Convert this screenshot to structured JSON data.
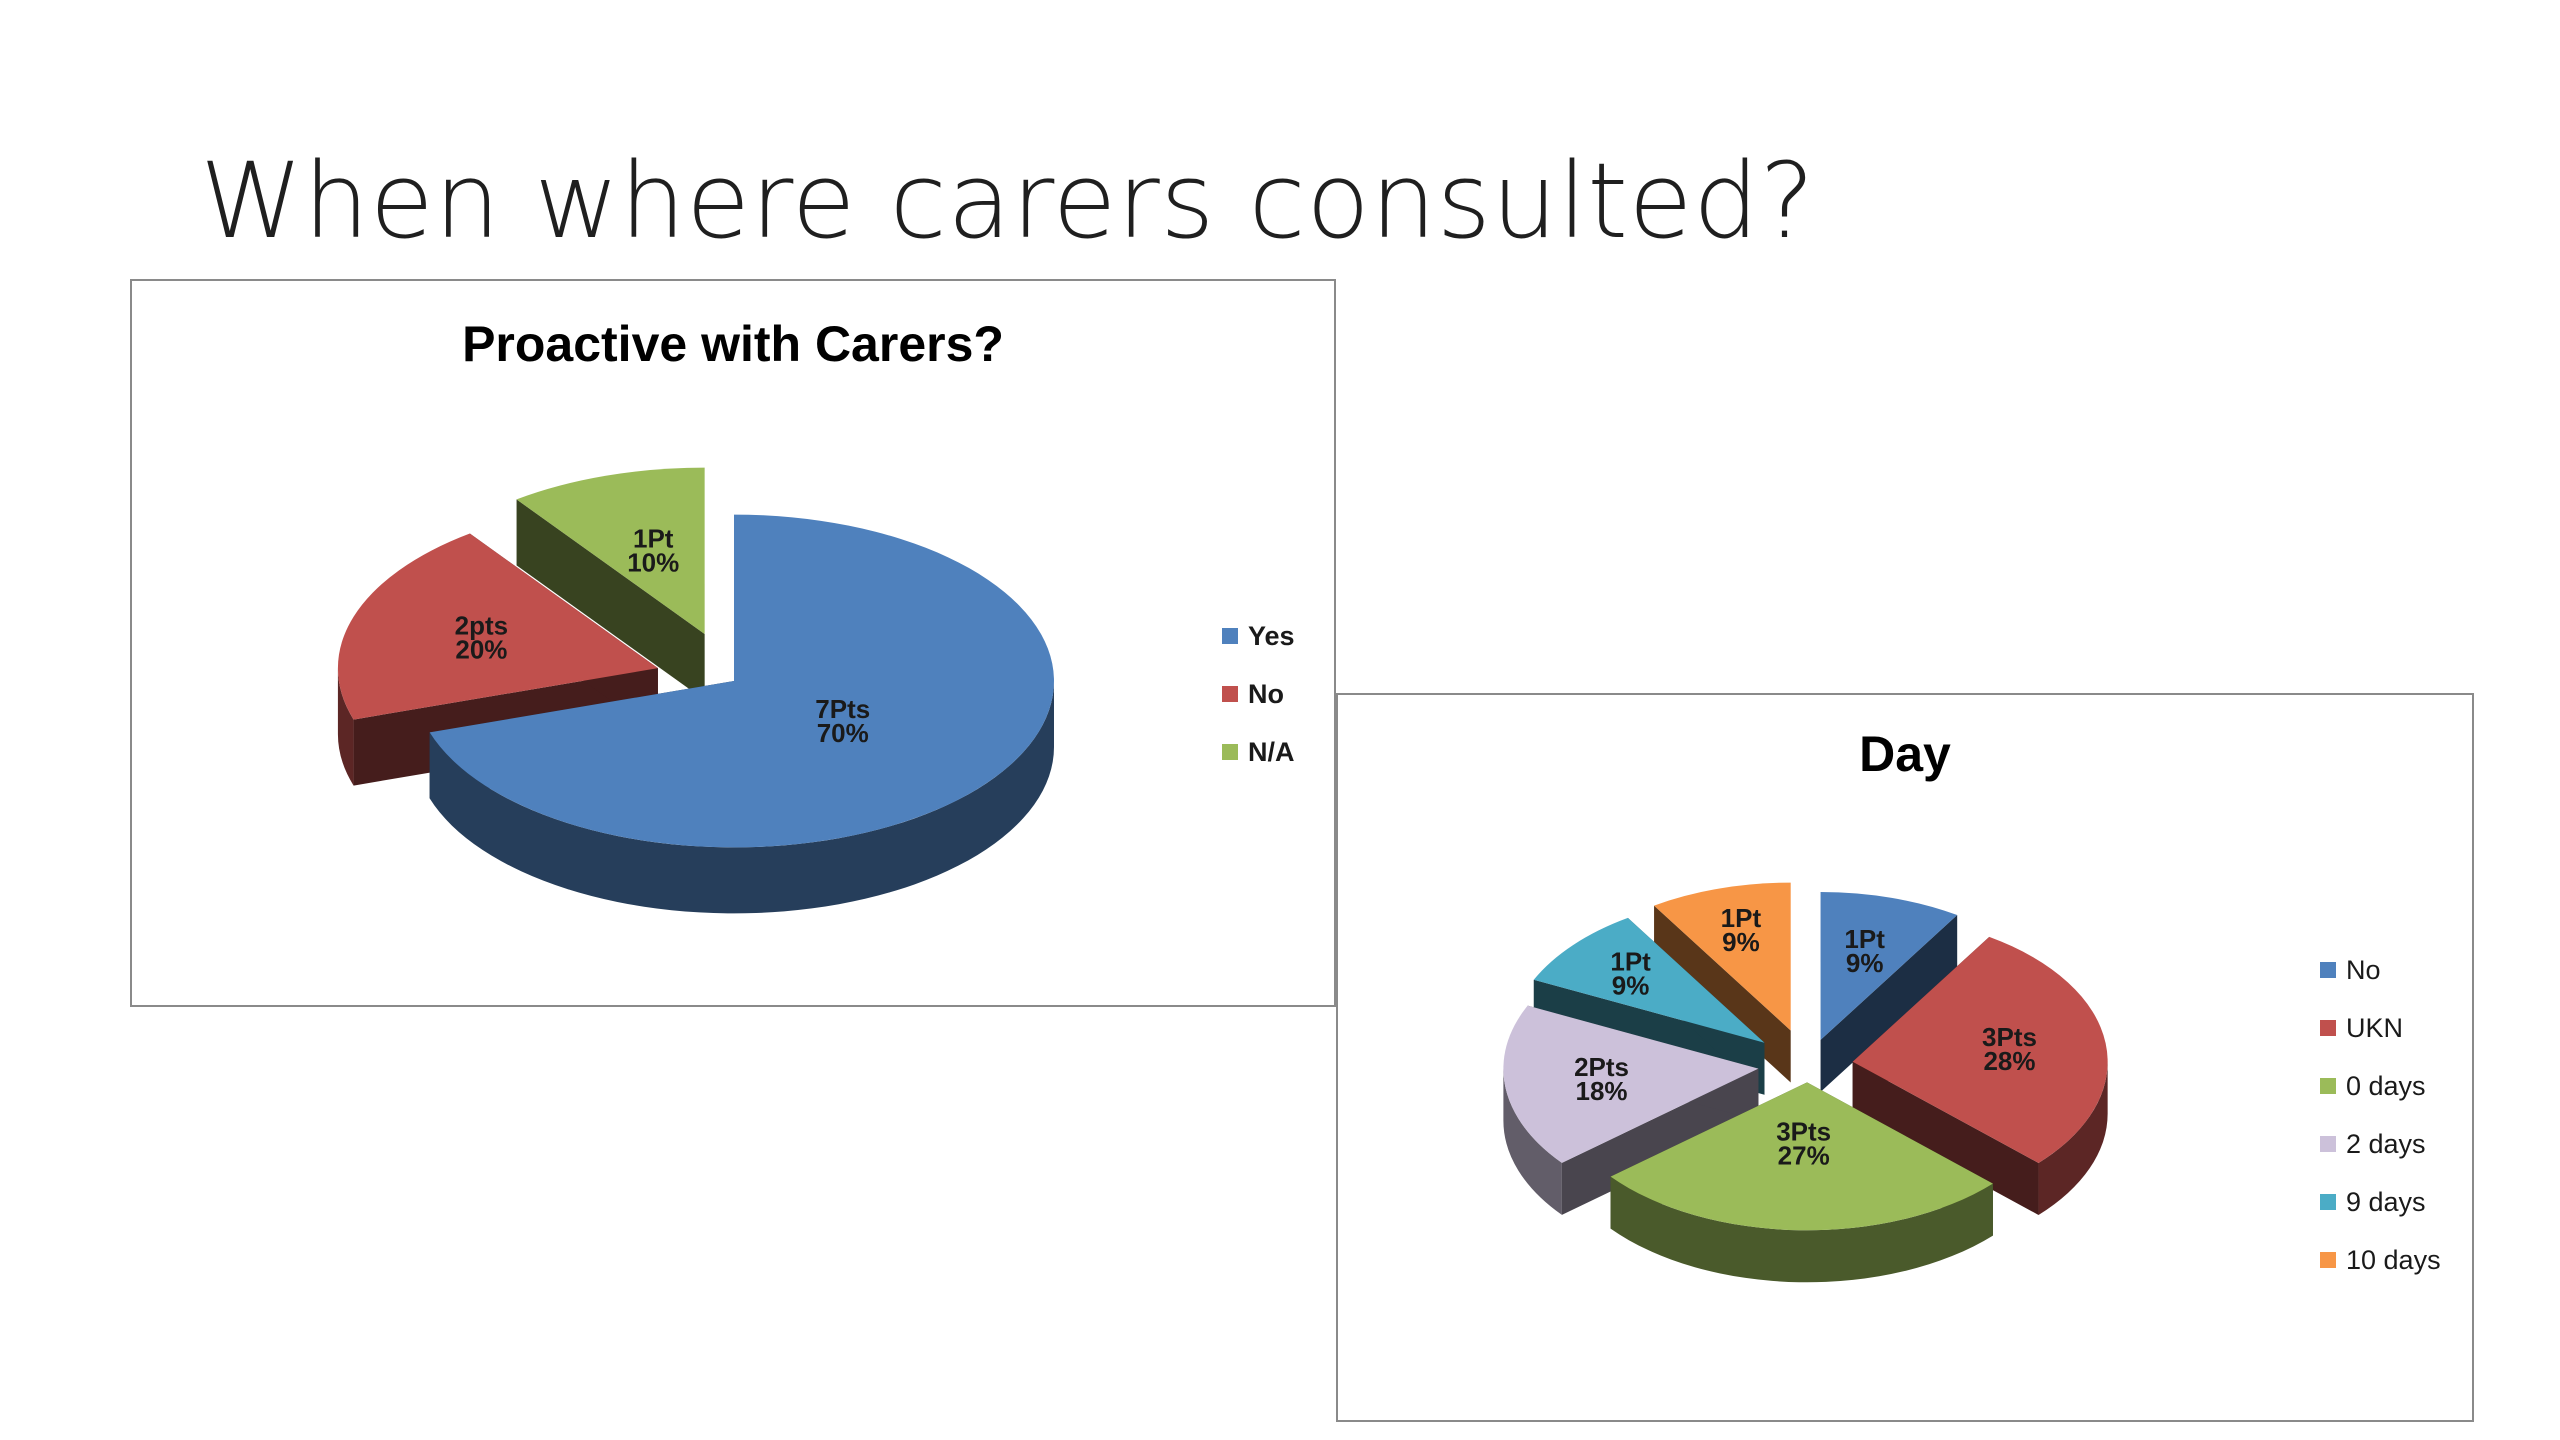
{
  "slide": {
    "title": "When where carers consulted?"
  },
  "chart_data": [
    {
      "type": "pie",
      "title": "Proactive with Carers?",
      "legend_position": "right",
      "explode": true,
      "style": "3d",
      "slices": [
        {
          "name": "Yes",
          "value": 70,
          "label_line1": "7Pts",
          "label_line2": "70%",
          "color": "#4f81bd"
        },
        {
          "name": "No",
          "value": 20,
          "label_line1": "2pts",
          "label_line2": "20%",
          "color": "#c0504d"
        },
        {
          "name": "N/A",
          "value": 10,
          "label_line1": "1Pt",
          "label_line2": "10%",
          "color": "#9bbb59"
        }
      ]
    },
    {
      "type": "pie",
      "title": "Day",
      "legend_position": "right",
      "explode": true,
      "style": "3d",
      "slices": [
        {
          "name": "No",
          "value": 9,
          "label_line1": "1Pt",
          "label_line2": "9%",
          "color": "#4f81bd"
        },
        {
          "name": "UKN",
          "value": 28,
          "label_line1": "3Pts",
          "label_line2": "28%",
          "color": "#c0504d"
        },
        {
          "name": "0 days",
          "value": 27,
          "label_line1": "3Pts",
          "label_line2": "27%",
          "color": "#9bbb59"
        },
        {
          "name": "2 days",
          "value": 18,
          "label_line1": "2Pts",
          "label_line2": "18%",
          "color": "#ccc1da"
        },
        {
          "name": "9 days",
          "value": 9,
          "label_line1": "1Pt",
          "label_line2": "9%",
          "color": "#4bacc6"
        },
        {
          "name": "10 days",
          "value": 9,
          "label_line1": "1Pt",
          "label_line2": "9%",
          "color": "#f79646"
        }
      ]
    }
  ]
}
